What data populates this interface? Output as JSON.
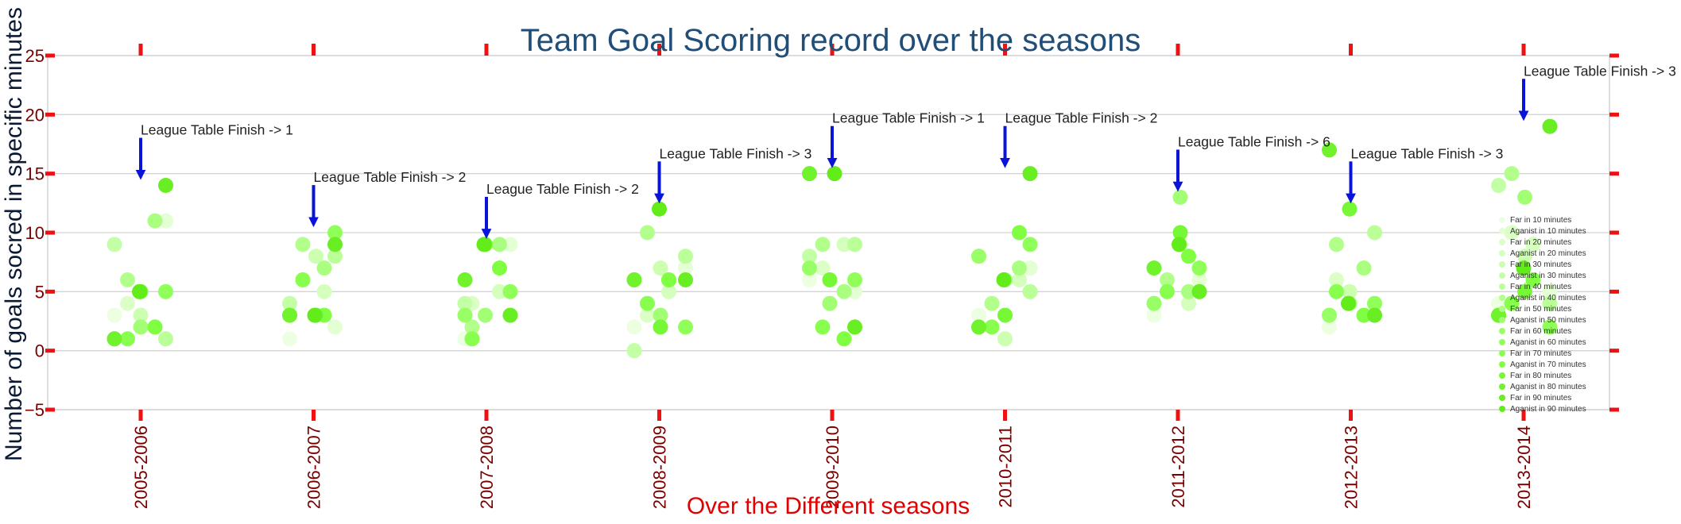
{
  "chart_data": {
    "type": "scatter",
    "title": "Team Goal Scoring record over the seasons",
    "xlabel": "Over the Different seasons",
    "ylabel": "Number of goals socred in specific minutes",
    "categories": [
      "2005-2006",
      "2006-2007",
      "2007-2008",
      "2008-2009",
      "2009-2010",
      "2010-2011",
      "2011-2012",
      "2012-2013",
      "2013-2014"
    ],
    "yticks": [
      -5,
      0,
      5,
      10,
      15,
      20,
      25
    ],
    "ytick_labels": [
      "−5",
      "0",
      "5",
      "10",
      "15",
      "20",
      "25"
    ],
    "ylim": [
      -5,
      25
    ],
    "grid": true,
    "legend_placement": "right",
    "colors": {
      "title": "#1f4e79",
      "xlabel": "#e00000",
      "ylabel": "#0b1a33",
      "tick_label": "#7a0000",
      "tick_mark": "#ee1111",
      "grid": "#d4d4d4",
      "arrow": "#0a14d8",
      "legend_text": "#333333"
    },
    "annotation_prefix": "League Table Finish ->  ",
    "annotations": [
      {
        "season": "2005-2006",
        "finish": "1",
        "point_y": 14,
        "text_y": 18.3
      },
      {
        "season": "2006-2007",
        "finish": "2",
        "point_y": 10,
        "text_y": 14.3
      },
      {
        "season": "2007-2008",
        "finish": "2",
        "point_y": 9,
        "text_y": 13.3
      },
      {
        "season": "2008-2009",
        "finish": "3",
        "point_y": 12,
        "text_y": 16.3
      },
      {
        "season": "2009-2010",
        "finish": "1",
        "point_y": 15,
        "text_y": 19.3
      },
      {
        "season": "2010-2011",
        "finish": "2",
        "point_y": 15,
        "text_y": 19.3
      },
      {
        "season": "2011-2012",
        "finish": "6",
        "point_y": 13,
        "text_y": 17.3
      },
      {
        "season": "2012-2013",
        "finish": "3",
        "point_y": 12,
        "text_y": 16.3
      },
      {
        "season": "2013-2014",
        "finish": "3",
        "point_y": 19,
        "text_y": 23.3
      }
    ],
    "series": [
      {
        "name": "Far in 10 minutes",
        "color": "#ecffe0",
        "values": [
          3,
          1,
          1,
          2,
          6,
          3,
          3,
          2,
          4
        ]
      },
      {
        "name": "Aganist in 10 minutes",
        "color": "#e4ffd4",
        "values": [
          11,
          2,
          9,
          7,
          5,
          7,
          6,
          4,
          5
        ]
      },
      {
        "name": "Far in 20 minutes",
        "color": "#dcffc8",
        "values": [
          4,
          6,
          4,
          3,
          7,
          4,
          5,
          6,
          10
        ]
      },
      {
        "name": "Aganist in 20 minutes",
        "color": "#d4ffbc",
        "values": [
          2,
          5,
          5,
          5,
          9,
          6,
          4,
          7,
          9
        ]
      },
      {
        "name": "Far in 30 minutes",
        "color": "#ccffb0",
        "values": [
          3,
          8,
          9,
          7,
          4,
          1,
          9,
          5,
          8
        ]
      },
      {
        "name": "Aganist in 30 minutes",
        "color": "#c3ffa4",
        "values": [
          9,
          4,
          4,
          0,
          8,
          2,
          4,
          3,
          14
        ]
      },
      {
        "name": "Far in 40 minutes",
        "color": "#bbff98",
        "values": [
          1,
          8,
          3,
          8,
          9,
          5,
          5,
          10,
          4
        ]
      },
      {
        "name": "Aganist in 40 minutes",
        "color": "#b3ff8c",
        "values": [
          6,
          9,
          2,
          10,
          9,
          4,
          6,
          9,
          15
        ]
      },
      {
        "name": "Far in 50 minutes",
        "color": "#aaff80",
        "values": [
          11,
          7,
          9,
          6,
          5,
          7,
          5,
          7,
          6
        ]
      },
      {
        "name": "Aganist in 50 minutes",
        "color": "#a2ff74",
        "values": [
          2,
          3,
          3,
          3,
          4,
          6,
          13,
          4,
          13
        ]
      },
      {
        "name": "Far in 60 minutes",
        "color": "#99ff66",
        "values": [
          1,
          3,
          3,
          6,
          7,
          8,
          4,
          3,
          3
        ]
      },
      {
        "name": "Aganist in 60 minutes",
        "color": "#91ff5a",
        "values": [
          5,
          10,
          5,
          2,
          6,
          9,
          7,
          4,
          2
        ]
      },
      {
        "name": "Far in 70 minutes",
        "color": "#88ff4e",
        "values": [
          1,
          6,
          1,
          4,
          2,
          2,
          5,
          5,
          4
        ]
      },
      {
        "name": "Aganist in 70 minutes",
        "color": "#80ff42",
        "values": [
          2,
          3,
          7,
          6,
          1,
          10,
          8,
          3,
          6
        ]
      },
      {
        "name": "Far in 80 minutes",
        "color": "#77f836",
        "values": [
          5,
          3,
          9,
          2,
          6,
          3,
          10,
          12,
          5
        ]
      },
      {
        "name": "Aganist in 80 minutes",
        "color": "#70f22c",
        "values": [
          1,
          3,
          6,
          6,
          15,
          2,
          7,
          17,
          3
        ]
      },
      {
        "name": "Far in 90 minutes",
        "color": "#68ee22",
        "values": [
          14,
          9,
          3,
          6,
          2,
          15,
          5,
          3,
          19
        ]
      },
      {
        "name": "Aganist in 90 minutes",
        "color": "#62ec1a",
        "values": [
          5,
          3,
          9,
          12,
          15,
          6,
          9,
          4,
          7
        ]
      }
    ]
  }
}
